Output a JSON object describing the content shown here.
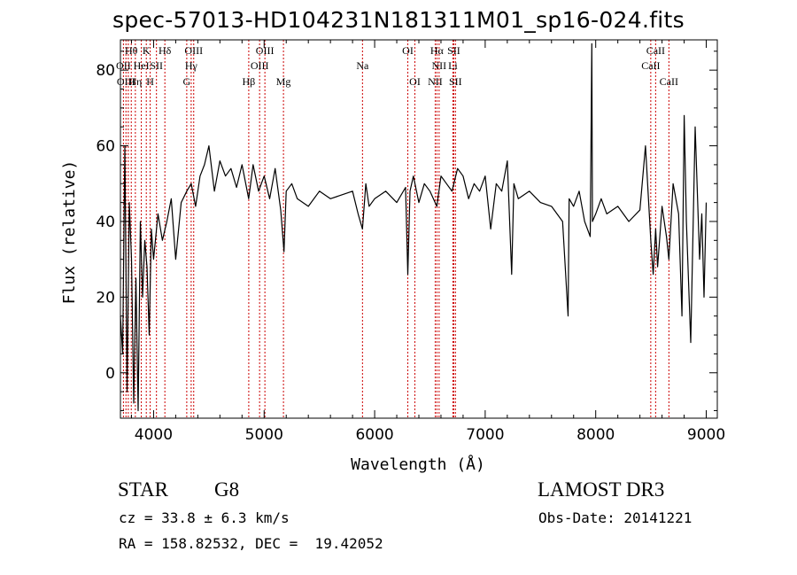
{
  "chart_data": {
    "type": "line",
    "title": "spec-57013-HD104231N181311M01_sp16-024.fits",
    "xlabel": "Wavelength (Å)",
    "ylabel": "Flux (relative)",
    "xlim": [
      3700,
      9100
    ],
    "ylim": [
      -12,
      88
    ],
    "xticks": [
      4000,
      5000,
      6000,
      7000,
      8000,
      9000
    ],
    "yticks": [
      0,
      20,
      40,
      60,
      80
    ],
    "series": [
      {
        "name": "spectrum",
        "x": [
          3700,
          3720,
          3740,
          3760,
          3780,
          3800,
          3820,
          3840,
          3860,
          3880,
          3900,
          3920,
          3940,
          3960,
          3980,
          4000,
          4040,
          4080,
          4120,
          4160,
          4200,
          4250,
          4300,
          4340,
          4380,
          4420,
          4460,
          4500,
          4550,
          4600,
          4650,
          4700,
          4750,
          4800,
          4860,
          4900,
          4950,
          5000,
          5050,
          5100,
          5150,
          5180,
          5200,
          5250,
          5300,
          5400,
          5500,
          5600,
          5700,
          5800,
          5850,
          5890,
          5920,
          5950,
          6000,
          6100,
          6200,
          6280,
          6300,
          6320,
          6350,
          6400,
          6450,
          6500,
          6563,
          6600,
          6650,
          6700,
          6750,
          6800,
          6850,
          6900,
          6950,
          7000,
          7050,
          7100,
          7150,
          7200,
          7240,
          7260,
          7300,
          7400,
          7500,
          7600,
          7700,
          7750,
          7760,
          7800,
          7850,
          7900,
          7950,
          7965,
          7970,
          8000,
          8050,
          8100,
          8200,
          8300,
          8400,
          8450,
          8498,
          8520,
          8542,
          8560,
          8600,
          8640,
          8662,
          8700,
          8750,
          8780,
          8800,
          8820,
          8860,
          8900,
          8940,
          8960,
          8980,
          9000
        ],
        "values": [
          15,
          5,
          60,
          -5,
          45,
          30,
          -8,
          25,
          -10,
          40,
          20,
          35,
          28,
          10,
          38,
          30,
          42,
          35,
          40,
          46,
          30,
          45,
          48,
          50,
          44,
          52,
          55,
          60,
          48,
          56,
          52,
          54,
          49,
          55,
          46,
          55,
          48,
          52,
          46,
          54,
          43,
          32,
          48,
          50,
          46,
          44,
          48,
          46,
          47,
          48,
          42,
          38,
          50,
          44,
          46,
          48,
          45,
          49,
          26,
          48,
          52,
          45,
          50,
          48,
          44,
          52,
          50,
          48,
          54,
          52,
          46,
          50,
          48,
          52,
          38,
          50,
          48,
          56,
          26,
          50,
          46,
          48,
          45,
          44,
          40,
          15,
          46,
          44,
          48,
          40,
          36,
          87,
          40,
          42,
          46,
          42,
          44,
          40,
          43,
          60,
          35,
          26,
          38,
          28,
          44,
          36,
          30,
          50,
          42,
          15,
          68,
          40,
          8,
          65,
          30,
          42,
          20,
          45
        ]
      }
    ],
    "lines": {
      "dashed_marker_wavelengths": [
        3727,
        3750,
        3771,
        3798,
        3835,
        3889,
        3934,
        3969,
        4026,
        4102,
        4300,
        4340,
        4363,
        4861,
        4959,
        5007,
        5175,
        5890,
        6300,
        6364,
        6548,
        6563,
        6583,
        6708,
        6716,
        6731,
        8498,
        8542,
        8662
      ],
      "labels": [
        {
          "text": "Hθ",
          "wavelength": 3798,
          "row": 0
        },
        {
          "text": "K",
          "wavelength": 3934,
          "row": 0
        },
        {
          "text": "Hδ",
          "wavelength": 4102,
          "row": 0
        },
        {
          "text": "OIII",
          "wavelength": 4363,
          "row": 0
        },
        {
          "text": "OIII",
          "wavelength": 5007,
          "row": 0
        },
        {
          "text": "OI",
          "wavelength": 6300,
          "row": 0
        },
        {
          "text": "Hα",
          "wavelength": 6563,
          "row": 0
        },
        {
          "text": "SII",
          "wavelength": 6716,
          "row": 0
        },
        {
          "text": "CaII",
          "wavelength": 8542,
          "row": 0
        },
        {
          "text": "OII",
          "wavelength": 3727,
          "row": 1
        },
        {
          "text": "HeI",
          "wavelength": 3889,
          "row": 1
        },
        {
          "text": "SII",
          "wavelength": 4026,
          "row": 1
        },
        {
          "text": "Hγ",
          "wavelength": 4340,
          "row": 1
        },
        {
          "text": "OIII",
          "wavelength": 4959,
          "row": 1
        },
        {
          "text": "Na",
          "wavelength": 5890,
          "row": 1
        },
        {
          "text": "NII",
          "wavelength": 6583,
          "row": 1
        },
        {
          "text": "Li",
          "wavelength": 6708,
          "row": 1
        },
        {
          "text": "CaII",
          "wavelength": 8498,
          "row": 1
        },
        {
          "text": "OIII",
          "wavelength": 3750,
          "row": 2
        },
        {
          "text": "Hη",
          "wavelength": 3835,
          "row": 2
        },
        {
          "text": "H",
          "wavelength": 3969,
          "row": 2
        },
        {
          "text": "G",
          "wavelength": 4300,
          "row": 2
        },
        {
          "text": "Hβ",
          "wavelength": 4861,
          "row": 2
        },
        {
          "text": "Mg",
          "wavelength": 5175,
          "row": 2
        },
        {
          "text": "OI",
          "wavelength": 6364,
          "row": 2
        },
        {
          "text": "NII",
          "wavelength": 6548,
          "row": 2
        },
        {
          "text": "SII",
          "wavelength": 6731,
          "row": 2
        },
        {
          "text": "CaII",
          "wavelength": 8662,
          "row": 2
        }
      ]
    }
  },
  "info": {
    "class_label": "STAR",
    "subclass": "G8",
    "survey": "LAMOST DR3",
    "cz": "cz = 33.8 ± 6.3 km/s",
    "obs_date": "Obs-Date: 20141221",
    "coords": "RA = 158.82532, DEC =  19.42052"
  },
  "colors": {
    "line": "#000000",
    "marker": "#cc0000",
    "background": "#ffffff"
  }
}
